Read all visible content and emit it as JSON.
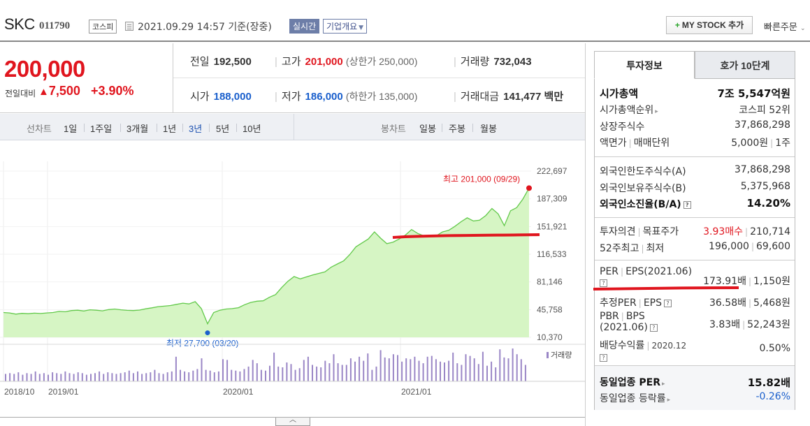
{
  "header": {
    "name": "SKC",
    "code": "011790",
    "market": "코스피",
    "timestamp": "2021.09.29 14:57 기준(장중)",
    "realtime_label": "실시간",
    "company_label": "기업개요",
    "mystock_label": "MY STOCK 추가",
    "quick_order_label": "빠른주문"
  },
  "price": {
    "current": "200,000",
    "diff_label": "전일대비",
    "diff_value": "7,500",
    "diff_rate": "+3.90%"
  },
  "quote": {
    "prev_label": "전일",
    "prev_value": "192,500",
    "high_label": "고가",
    "high_value": "201,000",
    "high_limit": "(상한가 250,000)",
    "volume_label": "거래량",
    "volume_value": "732,043",
    "open_label": "시가",
    "open_value": "188,000",
    "low_label": "저가",
    "low_value": "186,000",
    "low_limit": "(하한가 135,000)",
    "amount_label": "거래대금",
    "amount_value": "141,477",
    "amount_unit": "백만"
  },
  "toolbar": {
    "line_chart_label": "선차트",
    "periods": [
      "1일",
      "1주일",
      "3개월",
      "1년",
      "3년",
      "5년",
      "10년"
    ],
    "selected_period": "3년",
    "candle_chart_label": "봉차트",
    "candles": [
      "일봉",
      "주봉",
      "월봉"
    ]
  },
  "chart_data": {
    "type": "area",
    "x_range": [
      "2018-10",
      "2021-09"
    ],
    "x_tick_labels": [
      "2018/10",
      "2019/01",
      "2020/01",
      "2021/01"
    ],
    "y_tick_labels": [
      "222,697",
      "187,309",
      "151,921",
      "116,533",
      "81,146",
      "45,758",
      "10,370"
    ],
    "ylim": [
      10370,
      222697
    ],
    "series": [
      {
        "values": [
          42000,
          41500,
          40000,
          41000,
          40500,
          41200,
          40800,
          41500,
          42000,
          43500,
          43000,
          44500,
          45000,
          44000,
          45500,
          45000,
          44200,
          45800,
          46500,
          45500,
          44800,
          44500,
          45200,
          46800,
          48000,
          49500,
          50200,
          51000,
          52500,
          54000,
          53000,
          56000,
          47000,
          27700,
          42000,
          45000,
          46500,
          47000,
          48200,
          52000,
          55000,
          56500,
          57000,
          61500,
          65000,
          74000,
          82000,
          88000,
          85000,
          87500,
          90000,
          92000,
          94000,
          100000,
          104000,
          108000,
          116000,
          126000,
          131000,
          136000,
          145000,
          137000,
          130000,
          132000,
          136000,
          141000,
          148000,
          143000,
          140000,
          139500,
          140000,
          145000,
          147000,
          152000,
          158000,
          163000,
          159000,
          160000,
          166000,
          175000,
          168000,
          153000,
          172000,
          176000,
          187000,
          201000
        ]
      }
    ],
    "high_annotation": "최고 201,000 (09/29)",
    "low_annotation": "최저 27,700 (03/20)",
    "volume_label": "거래량",
    "volume": [
      9,
      10,
      9,
      11,
      8,
      10,
      9,
      12,
      9,
      10,
      8,
      11,
      10,
      9,
      12,
      10,
      9,
      11,
      10,
      8,
      9,
      10,
      12,
      9,
      11,
      10,
      9,
      10,
      11,
      13,
      10,
      12,
      9,
      10,
      11,
      14,
      10,
      9,
      11,
      12,
      30,
      14,
      12,
      11,
      13,
      15,
      28,
      14,
      13,
      11,
      12,
      27,
      26,
      14,
      13,
      12,
      15,
      18,
      26,
      22,
      14,
      13,
      19,
      35,
      18,
      17,
      23,
      21,
      14,
      16,
      26,
      30,
      20,
      18,
      17,
      25,
      22,
      33,
      22,
      20,
      20,
      28,
      24,
      30,
      25,
      34,
      14,
      18,
      38,
      29,
      28,
      33,
      32,
      24,
      28,
      27,
      30,
      25,
      22,
      30,
      31,
      27,
      24,
      23,
      25,
      35,
      22,
      20,
      33,
      31,
      28,
      21,
      36,
      19,
      24,
      17,
      39,
      29,
      28,
      40,
      33,
      27,
      20
    ]
  },
  "tabs": {
    "invest": "투자정보",
    "hoga": "호가 10단계"
  },
  "invest": {
    "mcap_label": "시가총액",
    "mcap_value": "7조 5,547억원",
    "mcap_rank_label": "시가총액순위",
    "mcap_rank_value": "코스피 52위",
    "shares_label": "상장주식수",
    "shares_value": "37,868,298",
    "face_label": "액면가",
    "trade_unit_label": "매매단위",
    "face_value": "5,000원",
    "trade_unit_value": "1주",
    "foreign_limit_label": "외국인한도주식수(A)",
    "foreign_limit_value": "37,868,298",
    "foreign_hold_label": "외국인보유주식수(B)",
    "foreign_hold_value": "5,375,968",
    "foreign_ratio_label": "외국인소진율(B/A)",
    "foreign_ratio_value": "14.20%",
    "opinion_label": "투자의견",
    "target_label": "목표주가",
    "opinion_value": "3.93매수",
    "target_value": "210,714",
    "w52_label": "52주최고",
    "w52_low_label": "최저",
    "w52_high_value": "196,000",
    "w52_low_value": "69,600",
    "per_label": "PER",
    "eps_label": "EPS(2021.06)",
    "per_value": "173.91배",
    "eps_value": "1,150원",
    "est_per_label": "추정PER",
    "est_eps_label": "EPS",
    "est_per_value": "36.58배",
    "est_eps_value": "5,468원",
    "pbr_label": "PBR",
    "bps_label": "BPS",
    "bps_date": "(2021.06)",
    "pbr_value": "3.83배",
    "bps_value": "52,243원",
    "dividend_label": "배당수익률",
    "dividend_date": "2020.12",
    "dividend_value": "0.50%",
    "sector_per_label": "동일업종 PER",
    "sector_per_value": "15.82배",
    "sector_rate_label": "동일업종 등락률",
    "sector_rate_value": "-0.26%"
  },
  "colors": {
    "up": "#e0151e",
    "down": "#1a5fcc",
    "area_line": "#62c94a",
    "area_fill": "#d6f5c4",
    "volume_bar": "#9a86c6",
    "annotation_line": "#e0151e"
  }
}
